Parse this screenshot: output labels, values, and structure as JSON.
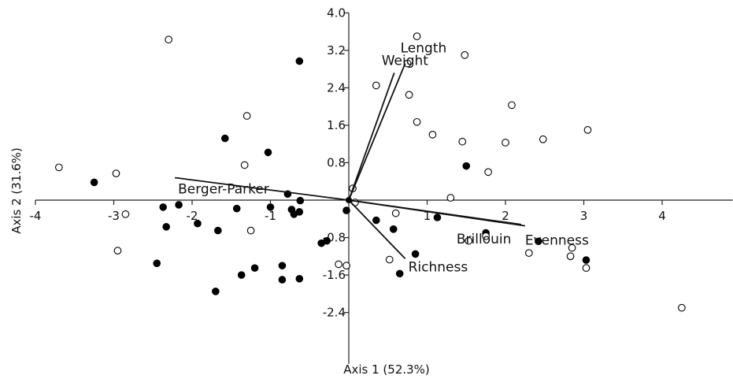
{
  "chart_data": {
    "type": "scatter",
    "xlabel": "Axis 1 (52.3%)",
    "ylabel": "Axis 2 (31.6%)",
    "xlim": [
      -4,
      4.9
    ],
    "ylim": [
      -3.5,
      4.0
    ],
    "x_ticks": [
      -4,
      -3,
      -2,
      -1,
      1,
      2,
      3,
      4
    ],
    "x_tick_labels": [
      "-4",
      "-3",
      "-2",
      "-1",
      "1",
      "2",
      "3",
      "4"
    ],
    "y_ticks": [
      4.0,
      3.2,
      2.4,
      1.6,
      0.8,
      -0.8,
      -1.6,
      -2.4
    ],
    "y_tick_labels": [
      "4.0",
      "3.2",
      "2.4",
      "1.6",
      "0.8",
      "-0.8",
      "-1.6",
      "-2.4"
    ],
    "series": [
      {
        "marker": "filled-circle",
        "color": "#000000",
        "points": [
          [
            -3.25,
            0.38
          ],
          [
            -2.45,
            -1.35
          ],
          [
            -2.37,
            -0.15
          ],
          [
            -2.33,
            -0.57
          ],
          [
            -2.17,
            -0.1
          ],
          [
            -1.93,
            -0.5
          ],
          [
            -1.67,
            -0.65
          ],
          [
            -1.7,
            -1.95
          ],
          [
            -1.58,
            1.32
          ],
          [
            -1.43,
            -0.18
          ],
          [
            -1.37,
            -1.6
          ],
          [
            -1.2,
            -1.45
          ],
          [
            -1.03,
            1.02
          ],
          [
            -1.0,
            -0.15
          ],
          [
            -0.85,
            -1.4
          ],
          [
            -0.85,
            -1.7
          ],
          [
            -0.78,
            0.13
          ],
          [
            -0.73,
            -0.2
          ],
          [
            -0.7,
            -0.3
          ],
          [
            -0.63,
            -0.25
          ],
          [
            -0.62,
            -0.01
          ],
          [
            -0.63,
            -1.68
          ],
          [
            -0.63,
            2.97
          ],
          [
            -0.35,
            -0.92
          ],
          [
            -0.28,
            -0.87
          ],
          [
            -0.03,
            -0.22
          ],
          [
            0.35,
            -0.43
          ],
          [
            0.57,
            -0.62
          ],
          [
            0.65,
            -1.57
          ],
          [
            0.85,
            -1.15
          ],
          [
            1.13,
            -0.37
          ],
          [
            1.5,
            0.73
          ],
          [
            1.75,
            -0.7
          ],
          [
            2.42,
            -0.88
          ],
          [
            3.03,
            -1.28
          ]
        ]
      },
      {
        "marker": "open-circle",
        "color": "#000000",
        "points": [
          [
            -3.7,
            0.7
          ],
          [
            -2.97,
            0.57
          ],
          [
            -2.85,
            -0.3
          ],
          [
            -2.95,
            -1.08
          ],
          [
            -2.3,
            3.43
          ],
          [
            -1.33,
            0.75
          ],
          [
            -1.3,
            1.8
          ],
          [
            -1.25,
            -0.65
          ],
          [
            -0.13,
            -1.37
          ],
          [
            -0.03,
            -1.4
          ],
          [
            0.05,
            0.25
          ],
          [
            0.08,
            -0.05
          ],
          [
            0.35,
            2.45
          ],
          [
            0.52,
            -1.27
          ],
          [
            0.6,
            -0.28
          ],
          [
            0.75,
            2.92
          ],
          [
            0.77,
            2.25
          ],
          [
            0.87,
            1.67
          ],
          [
            0.87,
            3.5
          ],
          [
            1.07,
            1.4
          ],
          [
            1.3,
            0.05
          ],
          [
            1.45,
            1.25
          ],
          [
            1.48,
            3.1
          ],
          [
            1.53,
            -0.87
          ],
          [
            1.75,
            -0.77
          ],
          [
            1.78,
            0.6
          ],
          [
            2.0,
            1.23
          ],
          [
            2.08,
            2.03
          ],
          [
            2.3,
            -1.13
          ],
          [
            2.48,
            1.3
          ],
          [
            2.83,
            -1.2
          ],
          [
            2.85,
            -1.02
          ],
          [
            3.03,
            -1.45
          ],
          [
            3.05,
            1.5
          ],
          [
            4.25,
            -2.3
          ]
        ]
      }
    ],
    "vectors": [
      {
        "label": "Weight",
        "x": 0.58,
        "y": 2.72
      },
      {
        "label": "Length",
        "x": 0.72,
        "y": 2.92
      },
      {
        "label": "Berger-Parker",
        "x": -2.22,
        "y": 0.48
      },
      {
        "label": "Brillouin",
        "x": 2.2,
        "y": -0.52
      },
      {
        "label": "Evenness",
        "x": 2.25,
        "y": -0.55
      },
      {
        "label": "Richness",
        "x": 0.72,
        "y": -1.25
      }
    ]
  }
}
